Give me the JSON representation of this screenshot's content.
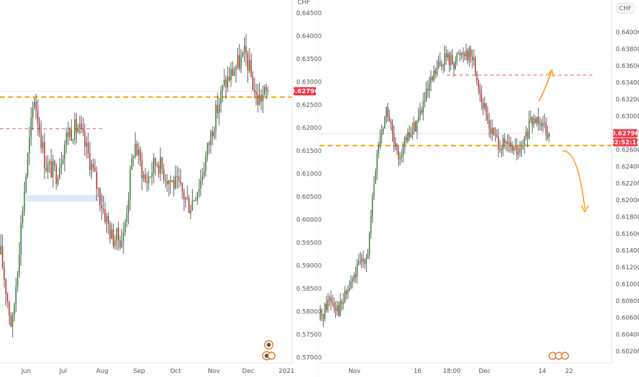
{
  "colors": {
    "up": "#2e7d32",
    "down": "#c62828",
    "wick": "#333333",
    "level_orange": "#ff9800",
    "level_red": "#ef5350",
    "zone_blue": "#dbe9fb",
    "price_tag": "#f23645",
    "axis_text": "#50535e",
    "divider": "#e0e3eb"
  },
  "chart_data": [
    {
      "type": "candlestick",
      "panel": "left",
      "currency_label": "CHF",
      "y_ticks": [
        "0.64500",
        "0.64000",
        "0.63500",
        "0.63000",
        "0.62500",
        "0.62000",
        "0.61500",
        "0.61000",
        "0.60500",
        "0.60000",
        "0.59500",
        "0.59000",
        "0.58500",
        "0.58000",
        "0.57500",
        "0.57000"
      ],
      "ylim": [
        0.5693,
        0.6459
      ],
      "x_ticks": [
        "Jun",
        "Jul",
        "Aug",
        "Sep",
        "Oct",
        "Nov",
        "Dec",
        "2021"
      ],
      "last_price": "0.62796",
      "key_points": [
        {
          "label": "May",
          "value": 0.5925
        },
        {
          "label": "late May",
          "value": 0.576
        },
        {
          "label": "end May",
          "value": 0.604
        },
        {
          "label": "early Jun",
          "value": 0.627
        },
        {
          "label": "mid Jun",
          "value": 0.612
        },
        {
          "label": "late Jun",
          "value": 0.61
        },
        {
          "label": "early Jul",
          "value": 0.619
        },
        {
          "label": "mid Jul",
          "value": 0.62
        },
        {
          "label": "late Jul",
          "value": 0.613
        },
        {
          "label": "early Aug",
          "value": 0.604
        },
        {
          "label": "mid Aug",
          "value": 0.596
        },
        {
          "label": "late Aug",
          "value": 0.596
        },
        {
          "label": "early Sep",
          "value": 0.617
        },
        {
          "label": "mid Sep",
          "value": 0.608
        },
        {
          "label": "late Sep",
          "value": 0.613
        },
        {
          "label": "early Oct",
          "value": 0.609
        },
        {
          "label": "mid Oct",
          "value": 0.607
        },
        {
          "label": "late Oct",
          "value": 0.603
        },
        {
          "label": "end Oct",
          "value": 0.609
        },
        {
          "label": "early Nov",
          "value": 0.62
        },
        {
          "label": "mid Nov",
          "value": 0.629
        },
        {
          "label": "late Nov",
          "value": 0.633
        },
        {
          "label": "early Dec",
          "value": 0.636
        },
        {
          "label": "mid Dec",
          "value": 0.626
        },
        {
          "label": "Dec now",
          "value": 0.62796
        }
      ],
      "levels": {
        "support": 0.6267,
        "resistance": 0.6198,
        "current": 0.62796
      },
      "zone": {
        "from_label": "Jun",
        "to_label": "Aug",
        "low": 0.604,
        "high": 0.6047
      }
    },
    {
      "type": "candlestick",
      "panel": "right",
      "currency_label": "CHF",
      "y_ticks": [
        "0.64000",
        "0.63800",
        "0.63600",
        "0.63400",
        "0.63200",
        "0.63000",
        "0.62800",
        "0.62600",
        "0.62400",
        "0.62200",
        "0.62000",
        "0.61800",
        "0.61600",
        "0.61400",
        "0.61200",
        "0.61000",
        "0.60800",
        "0.60600",
        "0.60400",
        "0.60200"
      ],
      "ylim": [
        0.6014,
        0.6426
      ],
      "x_ticks": [
        "Nov",
        "16",
        "18:00",
        "Dec",
        "14",
        "22"
      ],
      "last_price": "0.62796",
      "countdown": "02:52:14",
      "key_points": [
        {
          "label": "start",
          "value": 0.6058
        },
        {
          "label": "early Nov",
          "value": 0.6085
        },
        {
          "label": "Nov 4",
          "value": 0.607
        },
        {
          "label": "Nov 6",
          "value": 0.6095
        },
        {
          "label": "Nov 8",
          "value": 0.612
        },
        {
          "label": "Nov 9",
          "value": 0.614
        },
        {
          "label": "Nov 10",
          "value": 0.626
        },
        {
          "label": "Nov 11",
          "value": 0.631
        },
        {
          "label": "Nov 12",
          "value": 0.625
        },
        {
          "label": "Nov 13",
          "value": 0.627
        },
        {
          "label": "Nov 16",
          "value": 0.629
        },
        {
          "label": "Nov 17",
          "value": 0.632
        },
        {
          "label": "Nov 18",
          "value": 0.635
        },
        {
          "label": "Nov 20",
          "value": 0.637
        },
        {
          "label": "Nov 24",
          "value": 0.6365
        },
        {
          "label": "Nov 27",
          "value": 0.638
        },
        {
          "label": "Nov 30",
          "value": 0.637
        },
        {
          "label": "Dec 2",
          "value": 0.6315
        },
        {
          "label": "Dec 4",
          "value": 0.628
        },
        {
          "label": "Dec 7",
          "value": 0.6265
        },
        {
          "label": "Dec 9",
          "value": 0.6262
        },
        {
          "label": "Dec 10",
          "value": 0.6255
        },
        {
          "label": "Dec 11",
          "value": 0.629
        },
        {
          "label": "Dec 14",
          "value": 0.63
        },
        {
          "label": "now",
          "value": 0.62796
        }
      ],
      "levels": {
        "support": 0.6265,
        "resistance": 0.6349,
        "current": 0.62796
      }
    }
  ]
}
